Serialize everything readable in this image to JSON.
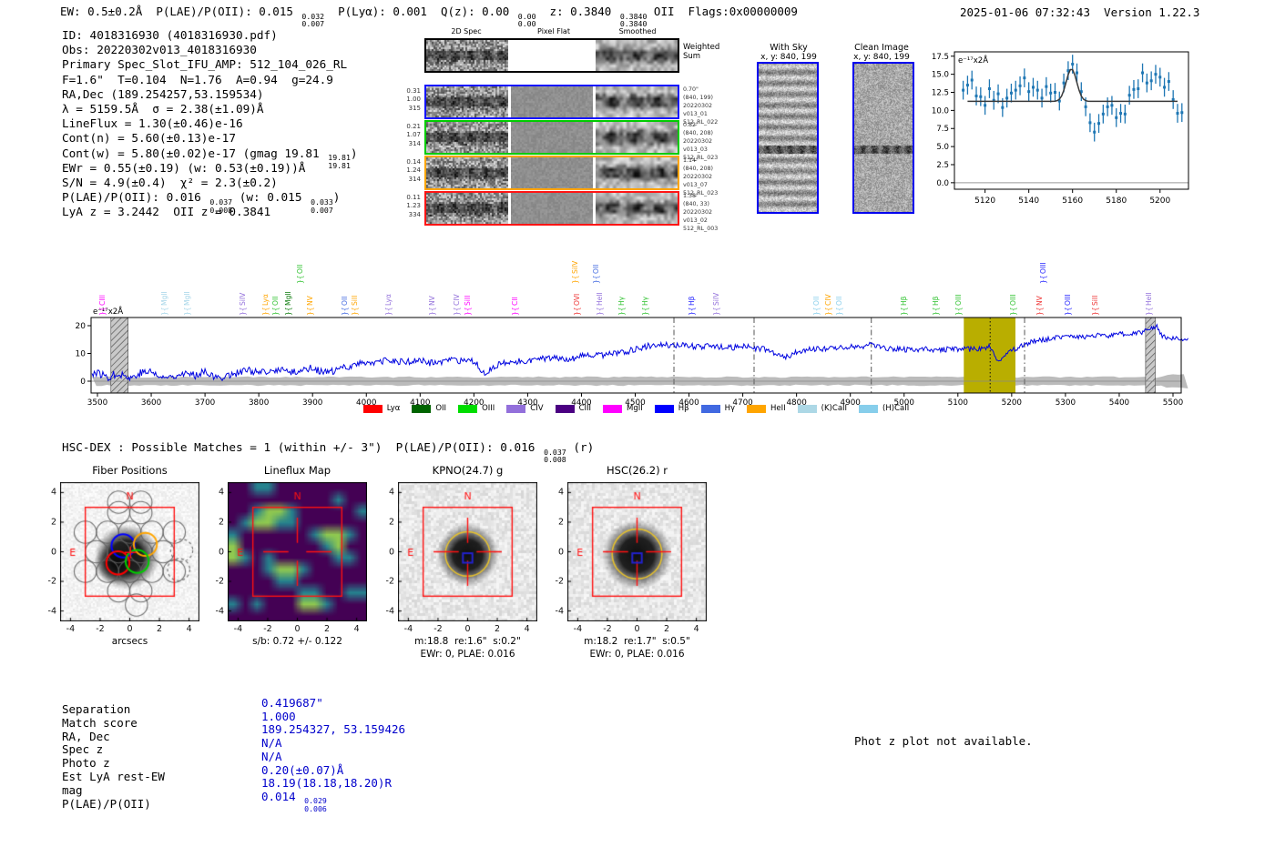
{
  "header": {
    "segments": [
      {
        "t": "EW: 0.5±0.2Å  P(LAE)/P(OII): 0.015 "
      },
      {
        "u": "0.032",
        "d": "0.007"
      },
      {
        "t": "  P(Lyα): 0.001  Q(z): 0.00 "
      },
      {
        "u": "0.00",
        "d": "0.00"
      },
      {
        "t": "  z: 0.3840 "
      },
      {
        "u": "0.3840",
        "d": "0.3840"
      },
      {
        "t": " OII  Flags:0x00000009"
      }
    ],
    "datetime": "2025-01-06 07:32:43  Version 1.22.3"
  },
  "info_lines": [
    [
      {
        "t": "ID: 4018316930 (4018316930.pdf)"
      }
    ],
    [
      {
        "t": "Obs: 20220302v013_4018316930"
      }
    ],
    [
      {
        "t": "Primary Spec_Slot_IFU_AMP: 512_104_026_RL"
      }
    ],
    [
      {
        "t": "F=1.6\"  T=0.104  N=1.76  A=0.94  g=24.9"
      }
    ],
    [
      {
        "t": "RA,Dec (189.254257,53.159534)"
      }
    ],
    [
      {
        "t": "λ = 5159.5Å  σ = 2.38(±1.09)Å"
      }
    ],
    [
      {
        "t": "LineFlux = 1.30(±0.46)e-16"
      }
    ],
    [
      {
        "t": "Cont(n) = 5.60(±0.13)e-17"
      }
    ],
    [
      {
        "t": "Cont(w) = 5.80(±0.02)e-17 (gmag 19.81 "
      },
      {
        "u": "19.81",
        "d": "19.81"
      },
      {
        "t": ")"
      }
    ],
    [
      {
        "t": "EWr = 0.55(±0.19) (w: 0.53(±0.19))Å"
      }
    ],
    [
      {
        "t": "S/N = 4.9(±0.4)  χ² = 2.3(±0.2)"
      }
    ],
    [
      {
        "t": "P(LAE)/P(OII): 0.016 "
      },
      {
        "u": "0.037",
        "d": "0.008"
      },
      {
        "t": " (w: 0.015 "
      },
      {
        "u": "0.033",
        "d": "0.007"
      },
      {
        "t": ")"
      }
    ],
    [
      {
        "t": "LyA z = 3.2442  OII z = 0.3841"
      }
    ]
  ],
  "spec2d": {
    "headers": [
      "2D Spec",
      "Pixel Flat",
      "Smoothed"
    ],
    "rows": [
      {
        "border": "#000000",
        "left": [],
        "right": [
          "Weighted",
          "Sum"
        ],
        "flat": "blank",
        "big": true
      },
      {
        "border": "#1414ff",
        "left": [
          "0.31",
          "1.00",
          "315"
        ],
        "right": [
          "0.70\"",
          "(840, 199)",
          "20220302",
          "v013_01",
          "512_RL_022"
        ]
      },
      {
        "border": "#00cc00",
        "left": [
          "0.21",
          "1.07",
          "314"
        ],
        "right": [
          "0.82\"",
          "(840, 208)",
          "20220302",
          "v013_03",
          "512_RL_023"
        ]
      },
      {
        "border": "#ffa500",
        "left": [
          "0.14",
          "1.24",
          "314"
        ],
        "right": [
          "1.14\"",
          "(840, 208)",
          "20220302",
          "v013_07",
          "512_RL_023"
        ]
      },
      {
        "border": "#ff1414",
        "left": [
          "0.11",
          "1.23",
          "334"
        ],
        "right": [
          "1.38\"",
          "(840, 33)",
          "20220302",
          "v013_02",
          "512_RL_003"
        ]
      }
    ]
  },
  "cutout2d": {
    "with_sky": {
      "title": "With Sky",
      "coords": "x, y: 840, 199"
    },
    "clean": {
      "title": "Clean Image",
      "coords": "x, y: 840, 199"
    }
  },
  "chart_data": [
    {
      "type": "scatter",
      "name": "emission-line-fit",
      "inplot_label": "e⁻¹⁷x2Å",
      "xticks": [
        5120,
        5140,
        5160,
        5180,
        5200
      ],
      "yticks": [
        0.0,
        2.5,
        5.0,
        7.5,
        10.0,
        12.5,
        15.0,
        17.5
      ],
      "xlim": [
        5106,
        5213
      ],
      "ylim": [
        -0.9,
        18.1
      ],
      "point_color": "#1f77b4",
      "fit_color": "#3a3a3a",
      "fit": {
        "baseline": 11.25,
        "mu": 5159.5,
        "sigma": 2.38,
        "amp": 4.5
      },
      "err": 1.3,
      "points": [
        [
          5110,
          12.8
        ],
        [
          5112,
          13.5
        ],
        [
          5114,
          14.2
        ],
        [
          5116,
          12.0
        ],
        [
          5118,
          11.9
        ],
        [
          5120,
          10.7
        ],
        [
          5122,
          13.0
        ],
        [
          5124,
          11.4
        ],
        [
          5126,
          12.3
        ],
        [
          5128,
          10.4
        ],
        [
          5130,
          11.7
        ],
        [
          5132,
          12.4
        ],
        [
          5134,
          12.8
        ],
        [
          5136,
          13.4
        ],
        [
          5138,
          14.5
        ],
        [
          5140,
          12.6
        ],
        [
          5142,
          13.2
        ],
        [
          5144,
          12.8
        ],
        [
          5146,
          11.7
        ],
        [
          5148,
          13.3
        ],
        [
          5150,
          12.4
        ],
        [
          5152,
          12.5
        ],
        [
          5154,
          11.3
        ],
        [
          5156,
          13.8
        ],
        [
          5158,
          15.5
        ],
        [
          5160,
          16.4
        ],
        [
          5162,
          15.2
        ],
        [
          5164,
          12.6
        ],
        [
          5166,
          10.5
        ],
        [
          5168,
          8.3
        ],
        [
          5170,
          7.0
        ],
        [
          5172,
          8.2
        ],
        [
          5174,
          9.5
        ],
        [
          5176,
          10.5
        ],
        [
          5178,
          10.7
        ],
        [
          5180,
          9.0
        ],
        [
          5182,
          9.6
        ],
        [
          5184,
          9.5
        ],
        [
          5186,
          12.1
        ],
        [
          5188,
          12.9
        ],
        [
          5190,
          13.0
        ],
        [
          5192,
          15.2
        ],
        [
          5194,
          13.8
        ],
        [
          5196,
          14.1
        ],
        [
          5198,
          15.0
        ],
        [
          5200,
          14.6
        ],
        [
          5202,
          13.2
        ],
        [
          5204,
          14.0
        ],
        [
          5206,
          11.5
        ],
        [
          5208,
          9.6
        ],
        [
          5210,
          9.7
        ]
      ]
    },
    {
      "type": "line",
      "name": "full-spectrum",
      "inplot_label": "e⁻¹⁷x2Å",
      "line_color": "#0004e0",
      "xticks": [
        3500,
        3600,
        3700,
        3800,
        3900,
        4000,
        4100,
        4200,
        4300,
        4400,
        4500,
        4600,
        4700,
        4800,
        4900,
        5000,
        5100,
        5200,
        5300,
        5400,
        5500
      ],
      "yticks": [
        0,
        10,
        20
      ],
      "xlim": [
        3488,
        5528
      ],
      "ylim": [
        -4.3,
        23.0
      ],
      "anchors": [
        [
          3500,
          3
        ],
        [
          3520,
          1.5
        ],
        [
          3540,
          3
        ],
        [
          3560,
          1
        ],
        [
          3580,
          3
        ],
        [
          3600,
          3.5
        ],
        [
          3620,
          1
        ],
        [
          3640,
          2
        ],
        [
          3660,
          3
        ],
        [
          3680,
          2
        ],
        [
          3700,
          4
        ],
        [
          3720,
          1
        ],
        [
          3740,
          2
        ],
        [
          3760,
          3
        ],
        [
          3780,
          4
        ],
        [
          3800,
          3
        ],
        [
          3820,
          3
        ],
        [
          3840,
          4.5
        ],
        [
          3860,
          3
        ],
        [
          3880,
          4
        ],
        [
          3900,
          5
        ],
        [
          3920,
          3
        ],
        [
          3940,
          3.5
        ],
        [
          3960,
          5
        ],
        [
          3980,
          6
        ],
        [
          4000,
          7
        ],
        [
          4020,
          6.5
        ],
        [
          4040,
          7.5
        ],
        [
          4060,
          7
        ],
        [
          4080,
          7
        ],
        [
          4100,
          7.5
        ],
        [
          4120,
          6.5
        ],
        [
          4140,
          7
        ],
        [
          4160,
          7.5
        ],
        [
          4180,
          7
        ],
        [
          4200,
          7
        ],
        [
          4220,
          3
        ],
        [
          4240,
          5.5
        ],
        [
          4260,
          6.5
        ],
        [
          4280,
          7
        ],
        [
          4300,
          7.5
        ],
        [
          4320,
          8
        ],
        [
          4340,
          8
        ],
        [
          4360,
          8.5
        ],
        [
          4380,
          8
        ],
        [
          4400,
          9
        ],
        [
          4420,
          9
        ],
        [
          4440,
          9.5
        ],
        [
          4460,
          10
        ],
        [
          4480,
          10.5
        ],
        [
          4500,
          11.5
        ],
        [
          4520,
          12.5
        ],
        [
          4540,
          13.5
        ],
        [
          4560,
          13
        ],
        [
          4580,
          13
        ],
        [
          4600,
          12.5
        ],
        [
          4620,
          12.5
        ],
        [
          4640,
          12.5
        ],
        [
          4660,
          12.5
        ],
        [
          4680,
          12
        ],
        [
          4700,
          12.5
        ],
        [
          4720,
          12
        ],
        [
          4740,
          11.5
        ],
        [
          4760,
          10
        ],
        [
          4780,
          8.5
        ],
        [
          4800,
          10.5
        ],
        [
          4820,
          11.5
        ],
        [
          4840,
          11.5
        ],
        [
          4860,
          12
        ],
        [
          4880,
          12
        ],
        [
          4900,
          12.5
        ],
        [
          4920,
          12.5
        ],
        [
          4940,
          13.5
        ],
        [
          4960,
          12
        ],
        [
          4980,
          11.5
        ],
        [
          5000,
          11.5
        ],
        [
          5020,
          11
        ],
        [
          5040,
          11.5
        ],
        [
          5060,
          11
        ],
        [
          5080,
          11.5
        ],
        [
          5100,
          11.5
        ],
        [
          5120,
          11.5
        ],
        [
          5140,
          11.8
        ],
        [
          5160,
          12.5
        ],
        [
          5170,
          8
        ],
        [
          5180,
          7.5
        ],
        [
          5190,
          10
        ],
        [
          5200,
          11
        ],
        [
          5220,
          13
        ],
        [
          5240,
          14.5
        ],
        [
          5260,
          15
        ],
        [
          5280,
          15.5
        ],
        [
          5300,
          16.5
        ],
        [
          5320,
          16
        ],
        [
          5340,
          16
        ],
        [
          5360,
          16.5
        ],
        [
          5380,
          16
        ],
        [
          5400,
          17
        ],
        [
          5420,
          17
        ],
        [
          5440,
          17.5
        ],
        [
          5460,
          19
        ],
        [
          5470,
          20
        ],
        [
          5480,
          16
        ],
        [
          5500,
          15.5
        ],
        [
          5528,
          15
        ]
      ],
      "olive_band": {
        "x0": 5111,
        "x1": 5207,
        "color": "#b9ae00"
      },
      "hatch_bands": [
        [
          3525,
          3557
        ],
        [
          5449,
          5467
        ]
      ],
      "dashdot_lines": [
        4572,
        4721,
        4939,
        5224
      ],
      "dotted_line": 5160
    }
  ],
  "line_labels": [
    {
      "x": 118,
      "text": "CIII",
      "color": "#ff00ff",
      "lvl": 0
    },
    {
      "x": 186,
      "text": "MgII",
      "color": "#a5d5e8",
      "lvl": 0
    },
    {
      "x": 211,
      "text": "MgII",
      "color": "#a5d5e8",
      "lvl": 0
    },
    {
      "x": 272,
      "text": "SiIV",
      "color": "#9370db",
      "lvl": 0
    },
    {
      "x": 297,
      "text": "Lyα",
      "color": "#ffa500",
      "lvl": 0
    },
    {
      "x": 308,
      "text": "OII",
      "color": "#2fc22f",
      "lvl": 0
    },
    {
      "x": 322,
      "text": "MgII",
      "color": "#0a7a0a",
      "lvl": 0
    },
    {
      "x": 335,
      "text": "OII",
      "color": "#2fc22f",
      "lvl": 1
    },
    {
      "x": 346,
      "text": "NV",
      "color": "#ffa500",
      "lvl": 0
    },
    {
      "x": 384,
      "text": "OII",
      "color": "#4169e1",
      "lvl": 0
    },
    {
      "x": 395,
      "text": "SiII",
      "color": "#ffa500",
      "lvl": 0
    },
    {
      "x": 432,
      "text": "Lyα",
      "color": "#9370db",
      "lvl": 0
    },
    {
      "x": 480,
      "text": "NV",
      "color": "#9370db",
      "lvl": 0
    },
    {
      "x": 507,
      "text": "CIV",
      "color": "#9370db",
      "lvl": 0
    },
    {
      "x": 519,
      "text": "SiII",
      "color": "#ff00ff",
      "lvl": 0
    },
    {
      "x": 571,
      "text": "CII",
      "color": "#ff00ff",
      "lvl": 0
    },
    {
      "x": 637,
      "text": "SiIV",
      "color": "#ffa500",
      "lvl": 1
    },
    {
      "x": 660,
      "text": "OII",
      "color": "#4169e1",
      "lvl": 1
    },
    {
      "x": 639,
      "text": "OVI",
      "color": "#ee3333",
      "lvl": 0
    },
    {
      "x": 664,
      "text": "HeII",
      "color": "#9370db",
      "lvl": 0
    },
    {
      "x": 688,
      "text": "Hγ",
      "color": "#2fc22f",
      "lvl": 0
    },
    {
      "x": 714,
      "text": "Hγ",
      "color": "#2fc22f",
      "lvl": 0
    },
    {
      "x": 765,
      "text": "Hβ",
      "color": "#2222ff",
      "lvl": 0
    },
    {
      "x": 792,
      "text": "SiIV",
      "color": "#9370db",
      "lvl": 0
    },
    {
      "x": 902,
      "text": "OII",
      "color": "#87ceeb",
      "lvl": 0
    },
    {
      "x": 915,
      "text": "CIV",
      "color": "#ffa500",
      "lvl": 0
    },
    {
      "x": 927,
      "text": "OII",
      "color": "#87ceeb",
      "lvl": 0
    },
    {
      "x": 998,
      "text": "Hβ",
      "color": "#2fc22f",
      "lvl": 0
    },
    {
      "x": 1033,
      "text": "Hβ",
      "color": "#2fc22f",
      "lvl": 0
    },
    {
      "x": 1058,
      "text": "OIII",
      "color": "#2fc22f",
      "lvl": 0
    },
    {
      "x": 1118,
      "text": "OIII",
      "color": "#2fc22f",
      "lvl": 0
    },
    {
      "x": 1147,
      "text": "NV",
      "color": "#ee3333",
      "lvl": 0
    },
    {
      "x": 1151,
      "text": "OIII",
      "color": "#2222ff",
      "lvl": 1
    },
    {
      "x": 1178,
      "text": "OIII",
      "color": "#2222ff",
      "lvl": 0
    },
    {
      "x": 1208,
      "text": "SiII",
      "color": "#ee3333",
      "lvl": 0
    },
    {
      "x": 1267,
      "text": "HeII",
      "color": "#9370db",
      "lvl": 0
    }
  ],
  "legend": [
    {
      "label": "Lyα",
      "color": "#ff0000"
    },
    {
      "label": "OII",
      "color": "#006400"
    },
    {
      "label": "OIII",
      "color": "#00dd00"
    },
    {
      "label": "CIV",
      "color": "#9370db"
    },
    {
      "label": "CIII",
      "color": "#4b0082"
    },
    {
      "label": "MgII",
      "color": "#ff00ff"
    },
    {
      "label": "Hβ",
      "color": "#0000ff"
    },
    {
      "label": "Hγ",
      "color": "#4169e1"
    },
    {
      "label": "HeII",
      "color": "#ffa500"
    },
    {
      "label": "(K)CaII",
      "color": "#add8e6"
    },
    {
      "label": "(H)CaII",
      "color": "#87ceeb"
    }
  ],
  "hsc_dex": {
    "segments": [
      {
        "t": "HSC-DEX : Possible Matches = 1 (within +/- 3\")  P(LAE)/P(OII): 0.016 "
      },
      {
        "u": "0.037",
        "d": "0.008"
      },
      {
        "t": " (r)"
      }
    ]
  },
  "cutouts": {
    "ticks": [
      -4,
      -2,
      0,
      2,
      4
    ],
    "compass": {
      "n": "N",
      "e": "E"
    },
    "panels": [
      {
        "title": "Fiber Positions",
        "xlabel": "arcsecs",
        "xlabel2": "",
        "type": "fiber"
      },
      {
        "title": "Lineflux Map",
        "xlabel": "s/b: 0.72 +/- 0.122",
        "xlabel2": "",
        "type": "lineflux"
      },
      {
        "title": "KPNO(24.7) g",
        "xlabel": "m:18.8  re:1.6\"  s:0.2\"",
        "xlabel2": "EWr: 0, PLAE: 0.016",
        "type": "image"
      },
      {
        "title": "HSC(26.2) r",
        "xlabel": "m:18.2  re:1.7\"  s:0.5\"",
        "xlabel2": "EWr: 0, PLAE: 0.016",
        "type": "image"
      }
    ]
  },
  "match_table": {
    "rows": [
      {
        "label": "Separation",
        "value": [
          {
            "t": "0.419687\""
          }
        ]
      },
      {
        "label": "Match score",
        "value": [
          {
            "t": "1.000"
          }
        ]
      },
      {
        "label": "RA, Dec",
        "value": [
          {
            "t": "189.254327, 53.159426"
          }
        ]
      },
      {
        "label": "Spec z",
        "value": [
          {
            "t": "N/A"
          }
        ]
      },
      {
        "label": "Photo z",
        "value": [
          {
            "t": "N/A"
          }
        ]
      },
      {
        "label": "Est LyA rest-EW",
        "value": [
          {
            "t": "0.20(±0.07)Å"
          }
        ]
      },
      {
        "label": "mag",
        "value": [
          {
            "t": "18.19(18.18,18.20)R"
          }
        ]
      },
      {
        "label": "P(LAE)/P(OII)",
        "value": [
          {
            "t": "0.014 "
          },
          {
            "u": "0.029",
            "d": "0.006"
          }
        ]
      }
    ],
    "value_color": "#0000cc"
  },
  "notes": {
    "photz": "Phot z plot not available."
  }
}
